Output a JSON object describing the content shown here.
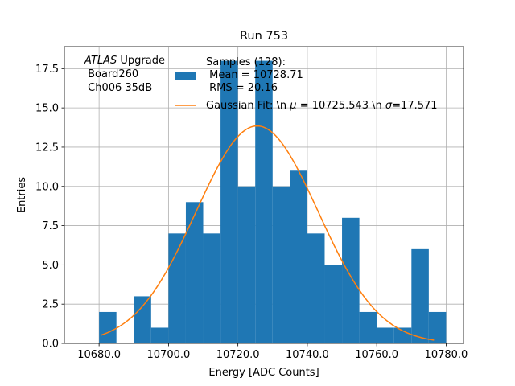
{
  "chart_data": {
    "type": "bar",
    "title": "Run 753",
    "xlabel": "Energy [ADC Counts]",
    "ylabel": "Entries",
    "xlim": [
      10670,
      10785
    ],
    "ylim": [
      0,
      18.9
    ],
    "grid": true,
    "x_ticks": [
      10680,
      10700,
      10720,
      10740,
      10760,
      10780
    ],
    "x_tick_labels": [
      "10680.0",
      "10700.0",
      "10720.0",
      "10740.0",
      "10760.0",
      "10780.0"
    ],
    "y_ticks": [
      0,
      2.5,
      5,
      7.5,
      10,
      12.5,
      15,
      17.5
    ],
    "y_tick_labels": [
      "0.0",
      "2.5",
      "5.0",
      "7.5",
      "10.0",
      "12.5",
      "15.0",
      "17.5"
    ],
    "bin_edges": [
      10680,
      10685,
      10690,
      10695,
      10700,
      10705,
      10710,
      10715,
      10720,
      10725,
      10730,
      10735,
      10740,
      10745,
      10750,
      10755,
      10760,
      10765,
      10770,
      10775,
      10780
    ],
    "values": [
      2,
      0,
      3,
      1,
      7,
      9,
      7,
      18,
      10,
      18,
      10,
      11,
      7,
      5,
      8,
      2,
      1,
      1,
      6,
      2
    ],
    "bar_color": "#1f77b4",
    "fit": {
      "mean": 10725.543,
      "sigma": 17.571,
      "peak": 13.85,
      "x_range": [
        10680.5,
        10776.5
      ],
      "color": "#ff7f0e"
    },
    "legend": {
      "placement": "top-right",
      "histogram_label": [
        "Samples (128):",
        " Mean = 10728.71",
        " RMS = 20.16"
      ],
      "fit_label": "Gaussian Fit: \\n $\\mu$ = 10725.543 \\n $\\sigma$=17.571"
    },
    "annotation": {
      "italic": "ATLAS",
      "rest": " Upgrade",
      "line2": " Board260",
      "line3": " Ch006 35dB"
    }
  }
}
